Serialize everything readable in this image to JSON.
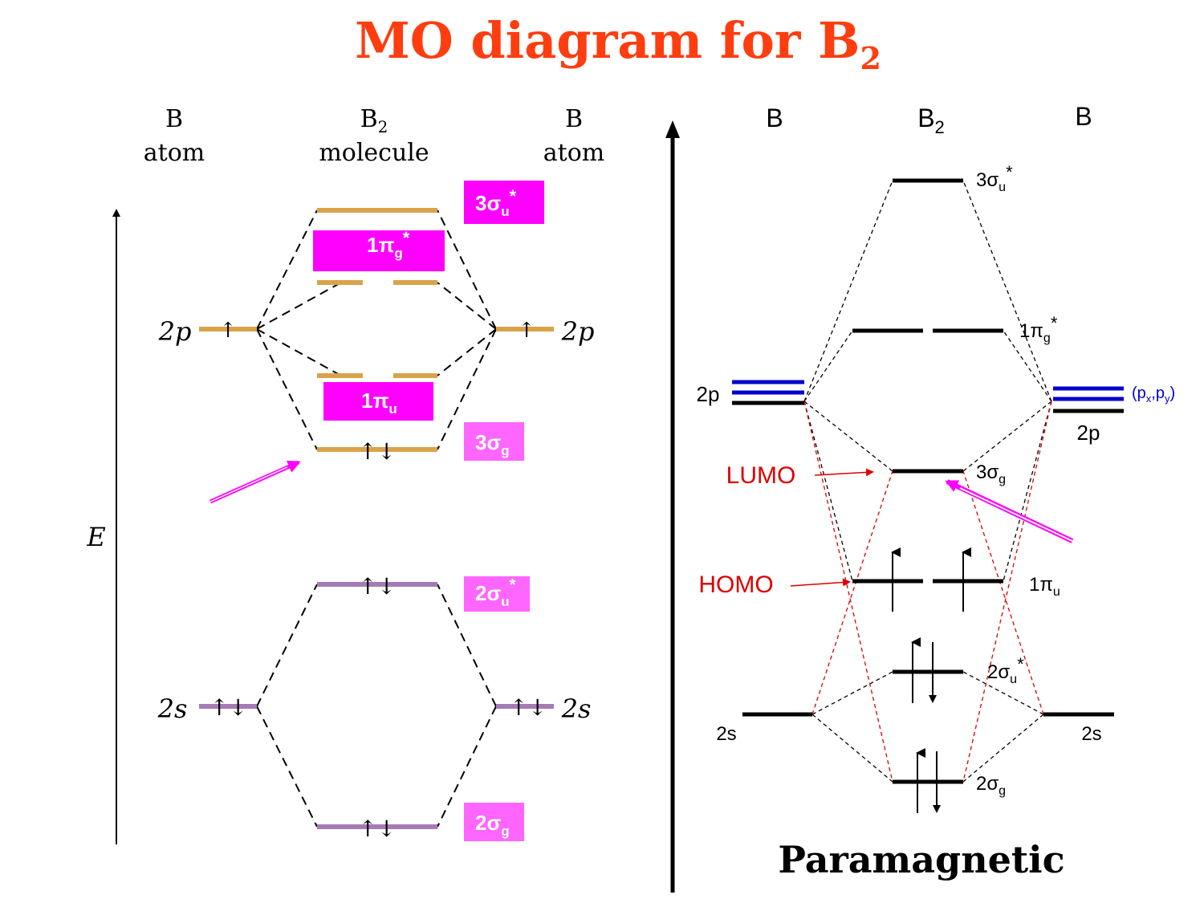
{
  "title": {
    "main": "MO diagram for B",
    "sub": "2"
  },
  "colors": {
    "title": "#ff3d0f",
    "level_2p": "#d9a34a",
    "level_2s": "#a67bb5",
    "magenta_box": "#ff00ff",
    "pink_box": "#ff66ff",
    "blue_px_py": "#0000cc",
    "red_label": "#dd0000"
  },
  "left_diagram": {
    "col_left_title": "B",
    "col_left_sub": "atom",
    "col_mid_title": "B",
    "col_mid_title_sub": "2",
    "col_mid_sub": "molecule",
    "col_right_title": "B",
    "col_right_sub": "atom",
    "axis_label": "E",
    "atom_2p_left": "2p",
    "atom_2p_right": "2p",
    "atom_2s_left": "2s",
    "atom_2s_right": "2s",
    "electron_single": "↑",
    "electron_pair": "↑↓",
    "box_3su": {
      "base": "3σ",
      "sub": "u",
      "sup": "*"
    },
    "box_1pg": {
      "base": "1π",
      "sub": "g",
      "sup": "*"
    },
    "box_1pu": {
      "base": "1π",
      "sub": "u"
    },
    "box_3sg": {
      "base": "3σ",
      "sub": "g"
    },
    "box_2su": {
      "base": "2σ",
      "sub": "u",
      "sup": "*"
    },
    "box_2sg": {
      "base": "2σ",
      "sub": "g"
    }
  },
  "right_diagram": {
    "col_left": "B",
    "col_mid": "B",
    "col_mid_sub": "2",
    "col_right": "B",
    "label_2p_left": "2p",
    "label_2p_right": "2p",
    "label_2s_left": "2s",
    "label_2s_right": "2s",
    "px_py": {
      "open": "(p",
      "x": "x",
      "comma": ",p",
      "y": "y",
      "close": ")"
    },
    "mo_3su": {
      "base": "3σ",
      "sub": "u",
      "sup": "*"
    },
    "mo_1pg": {
      "base": "1π",
      "sub": "g",
      "sup": "*"
    },
    "mo_3sg": {
      "base": "3σ",
      "sub": "g"
    },
    "mo_1pu": {
      "base": "1π",
      "sub": "u"
    },
    "mo_2su": {
      "base": "2σ",
      "sub": "u",
      "sup": "*"
    },
    "mo_2sg": {
      "base": "2σ",
      "sub": "g"
    },
    "lumo": "LUMO",
    "homo": "HOMO",
    "paramagnetic": "Paramagnetic"
  }
}
